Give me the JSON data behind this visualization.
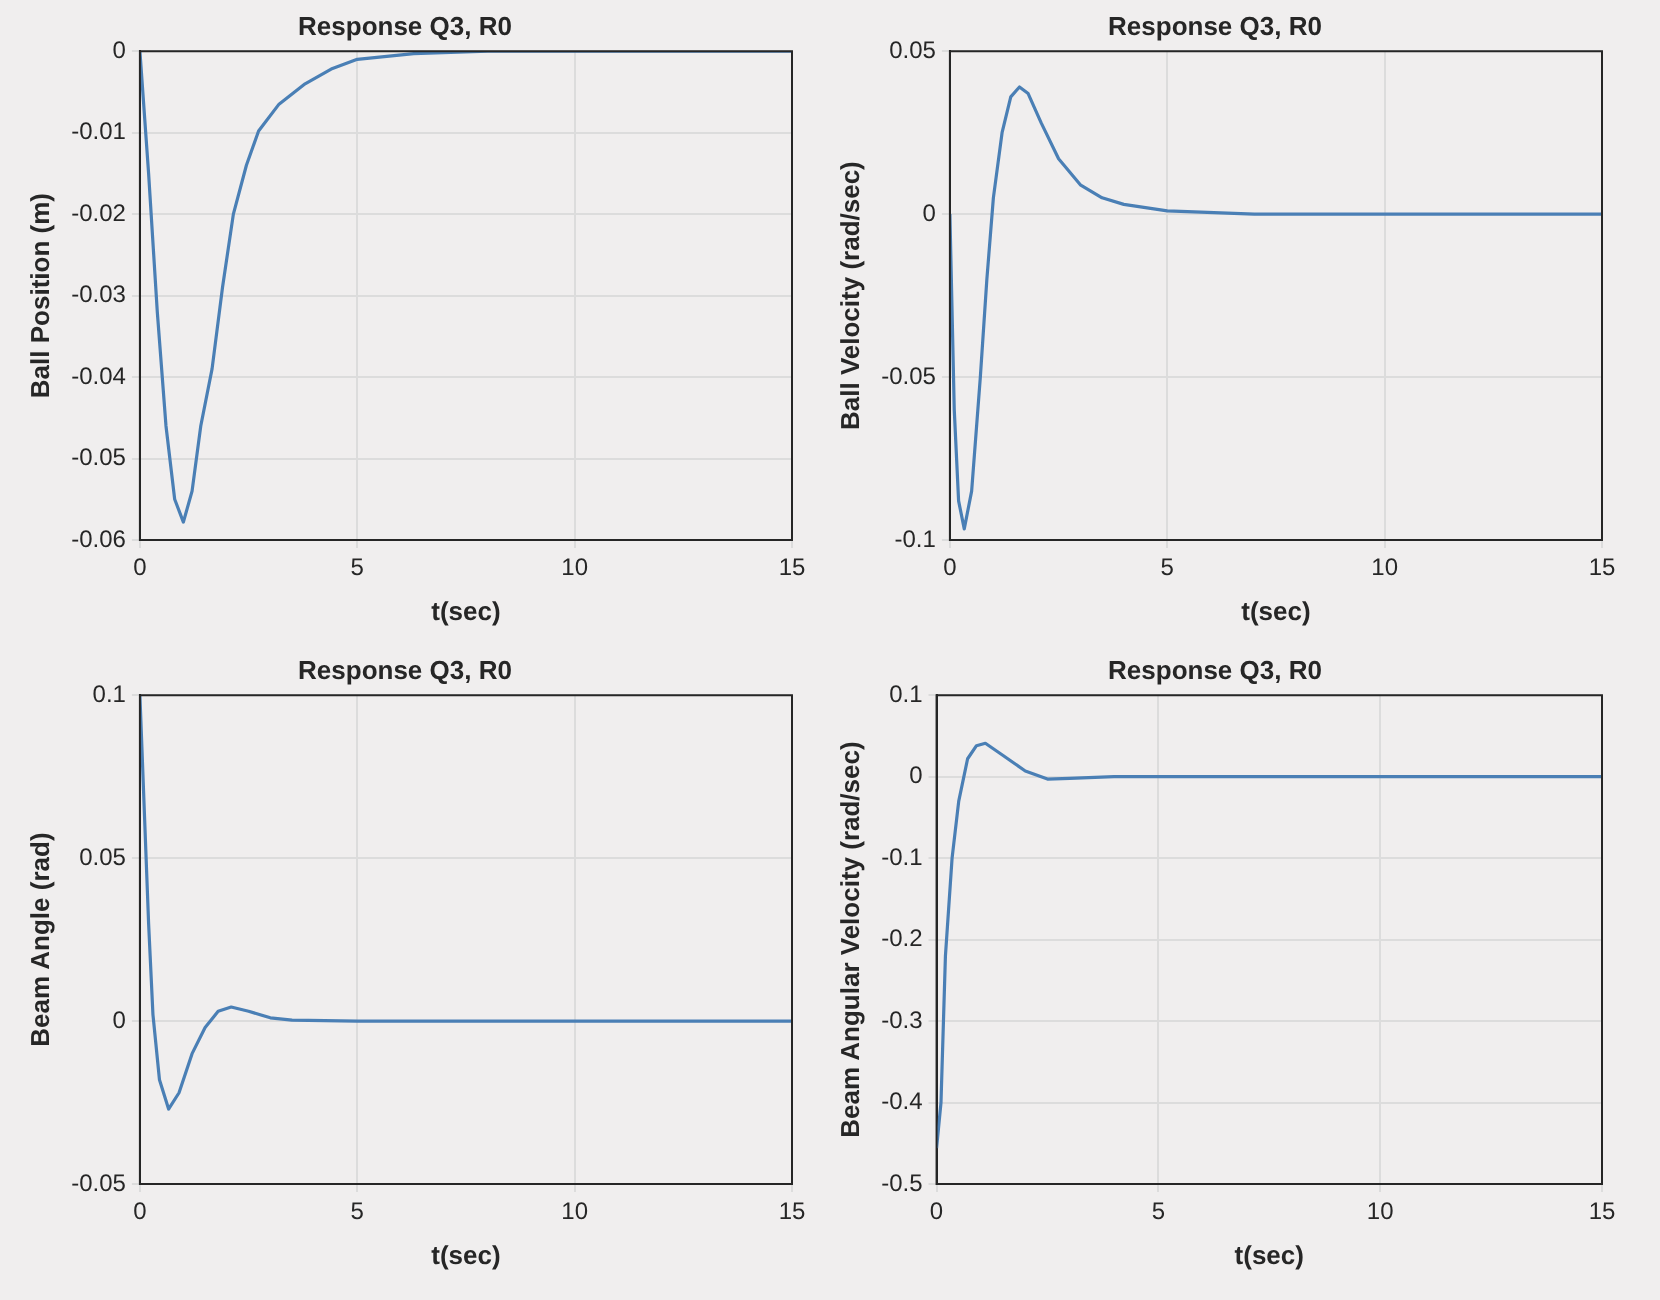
{
  "chart_data": [
    {
      "type": "line",
      "title": "Response Q3, R0",
      "xlabel": "t(sec)",
      "ylabel": "Ball Position (m)",
      "xlim": [
        0,
        15
      ],
      "xticks": [
        0,
        5,
        10,
        15
      ],
      "ylim": [
        -0.06,
        0
      ],
      "yticks": [
        -0.06,
        -0.05,
        -0.04,
        -0.03,
        -0.02,
        -0.01,
        0
      ],
      "grid": true,
      "color": "#4a7fb5",
      "x": [
        0,
        0.2,
        0.4,
        0.6,
        0.8,
        1.0,
        1.2,
        1.4,
        1.66,
        1.9,
        2.15,
        2.45,
        2.73,
        3.2,
        3.8,
        4.4,
        5,
        6.3,
        8,
        10,
        15
      ],
      "values": [
        0,
        -0.015,
        -0.032,
        -0.046,
        -0.055,
        -0.0578,
        -0.054,
        -0.046,
        -0.039,
        -0.029,
        -0.02,
        -0.014,
        -0.0098,
        -0.0065,
        -0.004,
        -0.0022,
        -0.001,
        -0.0003,
        0,
        0,
        0
      ]
    },
    {
      "type": "line",
      "title": "Response Q3, R0",
      "xlabel": "t(sec)",
      "ylabel": "Ball Velocity (rad/sec)",
      "xlim": [
        0,
        15
      ],
      "xticks": [
        0,
        5,
        10,
        15
      ],
      "ylim": [
        -0.1,
        0.05
      ],
      "yticks": [
        -0.1,
        -0.05,
        0,
        0.05
      ],
      "grid": true,
      "color": "#4a7fb5",
      "x": [
        0,
        0.1,
        0.2,
        0.33,
        0.5,
        0.7,
        0.85,
        1.0,
        1.2,
        1.4,
        1.6,
        1.8,
        2.1,
        2.5,
        3,
        3.5,
        4,
        5,
        7,
        15
      ],
      "values": [
        0,
        -0.06,
        -0.088,
        -0.0966,
        -0.085,
        -0.05,
        -0.02,
        0.005,
        0.025,
        0.036,
        0.039,
        0.037,
        0.028,
        0.017,
        0.009,
        0.005,
        0.003,
        0.001,
        0,
        0
      ]
    },
    {
      "type": "line",
      "title": "Response Q3, R0",
      "xlabel": "t(sec)",
      "ylabel": "Beam Angle (rad)",
      "xlim": [
        0,
        15
      ],
      "xticks": [
        0,
        5,
        10,
        15
      ],
      "ylim": [
        -0.05,
        0.1
      ],
      "yticks": [
        -0.05,
        0,
        0.05,
        0.1
      ],
      "grid": true,
      "color": "#4a7fb5",
      "x": [
        0,
        0.1,
        0.2,
        0.3,
        0.45,
        0.66,
        0.9,
        1.2,
        1.5,
        1.8,
        2.1,
        2.5,
        3,
        3.5,
        5,
        15
      ],
      "values": [
        0.1,
        0.065,
        0.03,
        0.002,
        -0.018,
        -0.027,
        -0.022,
        -0.01,
        -0.002,
        0.003,
        0.0043,
        0.003,
        0.001,
        0.0003,
        0,
        0
      ]
    },
    {
      "type": "line",
      "title": "Response Q3, R0",
      "xlabel": "t(sec)",
      "ylabel": "Beam Angular Velocity (rad/sec)",
      "xlim": [
        0,
        15
      ],
      "xticks": [
        0,
        5,
        10,
        15
      ],
      "ylim": [
        -0.5,
        0.1
      ],
      "yticks": [
        -0.5,
        -0.4,
        -0.3,
        -0.2,
        -0.1,
        0,
        0.1
      ],
      "grid": true,
      "color": "#4a7fb5",
      "x": [
        0,
        0.1,
        0.2,
        0.35,
        0.5,
        0.7,
        0.9,
        1.1,
        1.5,
        2,
        2.5,
        3,
        4,
        15
      ],
      "values": [
        -0.456,
        -0.4,
        -0.22,
        -0.1,
        -0.03,
        0.022,
        0.038,
        0.041,
        0.026,
        0.007,
        -0.003,
        -0.002,
        0,
        0
      ]
    }
  ]
}
